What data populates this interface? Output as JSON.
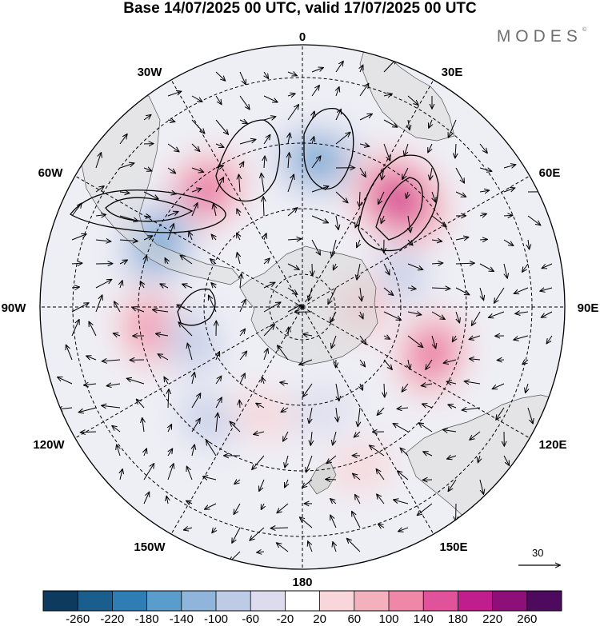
{
  "title": "Base 14/07/2025 00 UTC, valid 17/07/2025 00 UTC",
  "logo": "MODES",
  "logo_mark": "©",
  "longitude_labels": {
    "lon_0": "0",
    "lon_30e": "30E",
    "lon_60e": "60E",
    "lon_90e": "90E",
    "lon_120e": "120E",
    "lon_150e": "150E",
    "lon_180": "180",
    "lon_150w": "150W",
    "lon_120w": "120W",
    "lon_90w": "90W",
    "lon_60w": "60W",
    "lon_30w": "30W"
  },
  "reference_vector": "30",
  "colorbar": {
    "ticks": [
      "-260",
      "-220",
      "-180",
      "-140",
      "-100",
      "-60",
      "-20",
      "20",
      "60",
      "100",
      "140",
      "180",
      "220",
      "260"
    ],
    "colors": [
      "#0d3a5e",
      "#1a5e8e",
      "#2f7db5",
      "#5a9ccb",
      "#8fb5db",
      "#bdcbe6",
      "#dcdcee",
      "#ffffff",
      "#f8d6d9",
      "#f4b0bd",
      "#ef88a8",
      "#e0529a",
      "#bf1e8c",
      "#8e0e7a",
      "#4e0a5e"
    ]
  },
  "anomaly_centres": [
    {
      "lon": -40,
      "lat": -44,
      "value": 150
    },
    {
      "lon": 6,
      "lat": -45,
      "value": -150
    },
    {
      "lon": 42,
      "lat": -46,
      "value": 210
    },
    {
      "lon": -66,
      "lat": -42,
      "value": -160
    },
    {
      "lon": -98,
      "lat": -43,
      "value": 120
    },
    {
      "lon": -108,
      "lat": -55,
      "value": -90
    },
    {
      "lon": 110,
      "lat": -48,
      "value": 140
    },
    {
      "lon": 72,
      "lat": -58,
      "value": -60
    },
    {
      "lon": 90,
      "lat": -72,
      "value": 60
    },
    {
      "lon": -160,
      "lat": -55,
      "value": 50
    },
    {
      "lon": 170,
      "lat": -58,
      "value": -50
    },
    {
      "lon": -140,
      "lat": -45,
      "value": -60
    },
    {
      "lon": 160,
      "lat": -38,
      "value": 50
    }
  ]
}
